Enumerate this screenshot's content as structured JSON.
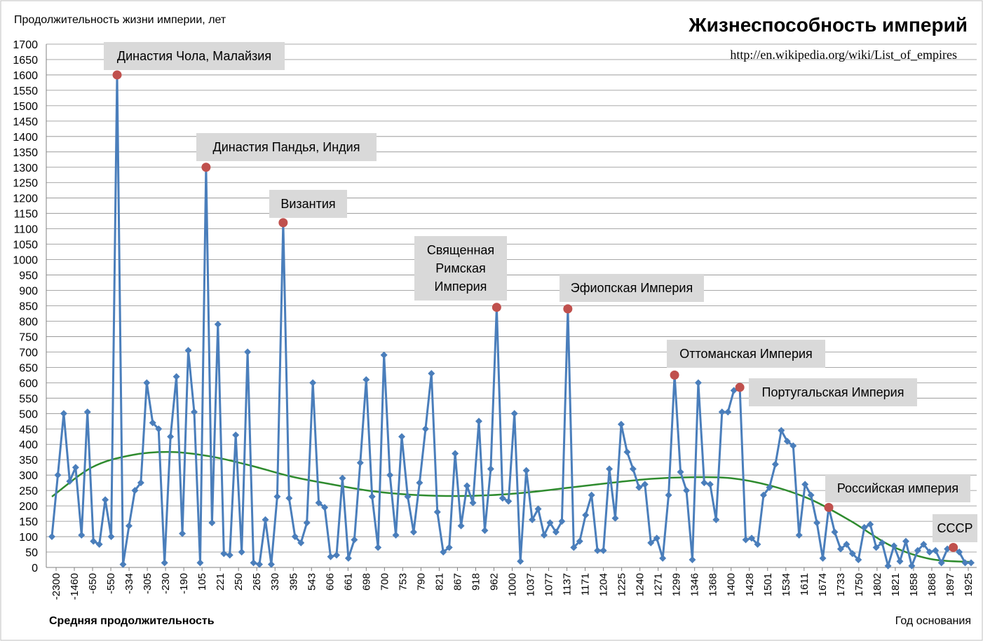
{
  "chart_data": {
    "type": "line",
    "title": "Жизнеспособность империй",
    "source": "http://en.wikipedia.org/wiki/List_of_empires",
    "ylabel": "Продолжительность жизни империи, лет",
    "xlabel": "Год основания",
    "trend_label": "Средняя продолжительность",
    "ylim": [
      0,
      1700
    ],
    "y_step": 50,
    "grid": true,
    "colors": {
      "series": "#4a7ebb",
      "trend": "#2e8b2e",
      "highlight": "#c0504d",
      "label_box": "#d9d9d9",
      "trend_label": "#1f7a1f"
    },
    "x_tick_labels": [
      "-2300",
      "-1460",
      "-650",
      "-550",
      "-334",
      "-305",
      "-230",
      "-190",
      "105",
      "221",
      "250",
      "265",
      "330",
      "395",
      "543",
      "606",
      "661",
      "698",
      "700",
      "753",
      "790",
      "821",
      "867",
      "918",
      "962",
      "1000",
      "1037",
      "1077",
      "1137",
      "1171",
      "1204",
      "1225",
      "1240",
      "1271",
      "1299",
      "1346",
      "1368",
      "1400",
      "1428",
      "1501",
      "1534",
      "1611",
      "1674",
      "1733",
      "1750",
      "1802",
      "1821",
      "1858",
      "1868",
      "1897",
      "1925"
    ],
    "series": [
      {
        "name": "Продолжительность жизни империи",
        "values": [
          100,
          300,
          500,
          280,
          325,
          105,
          505,
          85,
          75,
          220,
          100,
          1600,
          10,
          135,
          250,
          275,
          600,
          470,
          450,
          15,
          425,
          620,
          110,
          705,
          505,
          15,
          1300,
          145,
          790,
          45,
          40,
          430,
          50,
          700,
          15,
          10,
          155,
          10,
          230,
          1120,
          225,
          100,
          80,
          145,
          600,
          210,
          195,
          35,
          40,
          290,
          30,
          90,
          340,
          610,
          230,
          65,
          690,
          300,
          105,
          425,
          230,
          115,
          275,
          450,
          630,
          180,
          50,
          65,
          370,
          135,
          265,
          210,
          475,
          120,
          320,
          845,
          225,
          215,
          500,
          20,
          315,
          155,
          190,
          105,
          145,
          115,
          150,
          840,
          65,
          85,
          170,
          235,
          55,
          55,
          320,
          160,
          465,
          375,
          320,
          260,
          270,
          80,
          95,
          30,
          235,
          625,
          310,
          250,
          25,
          600,
          275,
          270,
          155,
          505,
          505,
          575,
          585,
          90,
          95,
          75,
          235,
          260,
          335,
          445,
          410,
          395,
          105,
          270,
          235,
          145,
          30,
          195,
          115,
          60,
          75,
          45,
          25,
          130,
          140,
          65,
          80,
          5,
          70,
          20,
          85,
          5,
          55,
          75,
          50,
          55,
          15,
          60,
          65,
          50,
          15,
          15
        ]
      }
    ],
    "trend_values": [
      230,
      325,
      365,
      375,
      360,
      330,
      295,
      270,
      248,
      236,
      232,
      235,
      245,
      260,
      275,
      288,
      293,
      290,
      265,
      220,
      150,
      70,
      27,
      18
    ],
    "annotations": [
      {
        "label": "Династия Чола, Малайзия",
        "index": 11,
        "value": 1600
      },
      {
        "label": "Династия Пандья, Индия",
        "index": 26,
        "value": 1300
      },
      {
        "label": "Византия",
        "index": 39,
        "value": 1120
      },
      {
        "label": "Священная Римская Империя",
        "lines": [
          "Священная",
          "Римская",
          "Империя"
        ],
        "index": 75,
        "value": 845
      },
      {
        "label": "Эфиопская Империя",
        "index": 87,
        "value": 840
      },
      {
        "label": "Оттоманская Империя",
        "index": 105,
        "value": 625
      },
      {
        "label": "Португальская Империя",
        "index": 116,
        "value": 585
      },
      {
        "label": "Российская империя",
        "index": 131,
        "value": 195
      },
      {
        "label": "СССР",
        "index": 152,
        "value": 65
      }
    ]
  }
}
